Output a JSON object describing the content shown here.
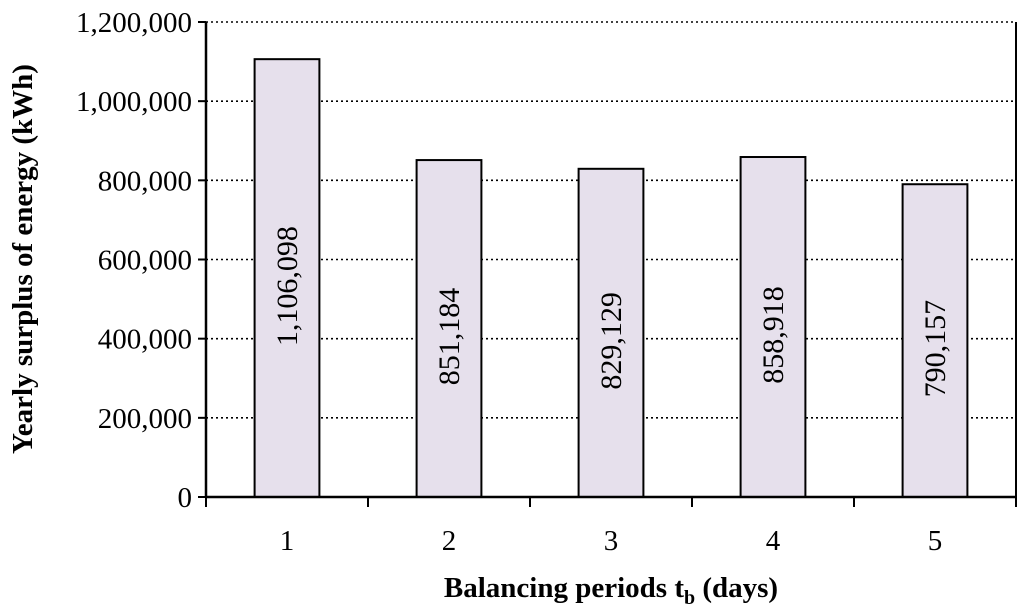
{
  "chart_data": {
    "type": "bar",
    "categories": [
      "1",
      "2",
      "3",
      "4",
      "5"
    ],
    "values": [
      1106098,
      851184,
      829129,
      858918,
      790157
    ],
    "data_labels": [
      "1,106,098",
      "851,184",
      "829,129",
      "858,918",
      "790,157"
    ],
    "title": "",
    "xlabel": "Balancing periods t",
    "xlabel_subscript": "b",
    "xlabel_suffix": " (days)",
    "ylabel": "Yearly surplus of energy (kWh)",
    "ylim": [
      0,
      1200000
    ],
    "yticks": [
      0,
      200000,
      400000,
      600000,
      800000,
      1000000,
      1200000
    ],
    "ytick_labels": [
      "0",
      "200,000",
      "400,000",
      "600,000",
      "800,000",
      "1,000,000",
      "1,200,000"
    ],
    "grid": "horizontal dotted",
    "legend": "none",
    "bar_color": "#e6e0ec"
  }
}
